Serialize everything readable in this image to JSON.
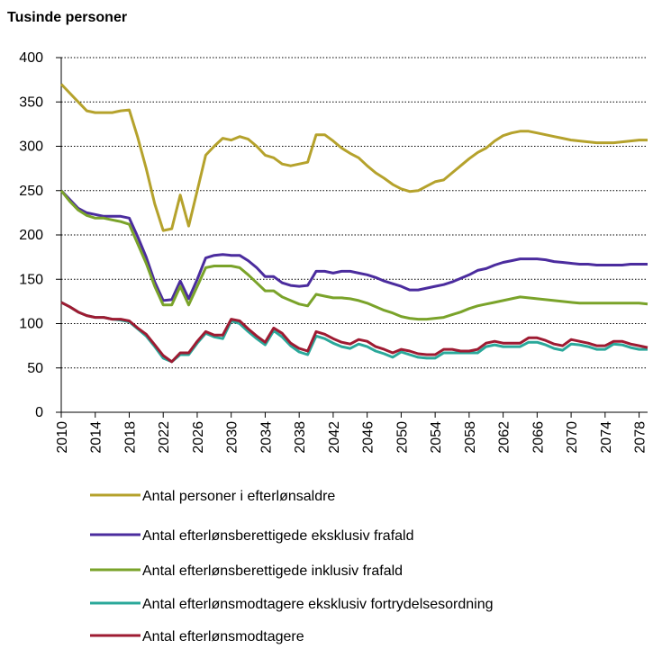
{
  "chart_data": {
    "type": "line",
    "y_label": "Tusinde personer",
    "x": [
      2010,
      2011,
      2012,
      2013,
      2014,
      2015,
      2016,
      2017,
      2018,
      2019,
      2020,
      2021,
      2022,
      2023,
      2024,
      2025,
      2026,
      2027,
      2028,
      2029,
      2030,
      2031,
      2032,
      2033,
      2034,
      2035,
      2036,
      2037,
      2038,
      2039,
      2040,
      2041,
      2042,
      2043,
      2044,
      2045,
      2046,
      2047,
      2048,
      2049,
      2050,
      2051,
      2052,
      2053,
      2054,
      2055,
      2056,
      2057,
      2058,
      2059,
      2060,
      2061,
      2062,
      2063,
      2064,
      2065,
      2066,
      2067,
      2068,
      2069,
      2070,
      2071,
      2072,
      2073,
      2074,
      2075,
      2076,
      2077,
      2078,
      2079
    ],
    "xlim": [
      2010,
      2079
    ],
    "xticks": [
      2010,
      2014,
      2018,
      2022,
      2026,
      2030,
      2034,
      2038,
      2042,
      2046,
      2050,
      2054,
      2058,
      2062,
      2066,
      2070,
      2074,
      2078
    ],
    "ylim": [
      0,
      400
    ],
    "yticks": [
      0,
      50,
      100,
      150,
      200,
      250,
      300,
      350,
      400
    ],
    "grid": true,
    "series": [
      {
        "name": "Antal personer i efterlønsaldre",
        "color": "#b5a22c",
        "values": [
          370,
          360,
          350,
          340,
          338,
          338,
          338,
          340,
          341,
          310,
          275,
          235,
          205,
          207,
          245,
          210,
          250,
          290,
          300,
          309,
          307,
          311,
          308,
          300,
          290,
          287,
          280,
          278,
          280,
          282,
          313,
          313,
          306,
          298,
          292,
          287,
          278,
          270,
          264,
          257,
          252,
          249,
          250,
          255,
          260,
          262,
          270,
          278,
          286,
          293,
          298,
          306,
          312,
          315,
          317,
          317,
          315,
          313,
          311,
          309,
          307,
          306,
          305,
          304,
          304,
          304,
          305,
          306,
          307,
          307
        ]
      },
      {
        "name": "Antal efterlønsberettigede eksklusiv frafald",
        "color": "#4b2c9e",
        "values": [
          250,
          240,
          230,
          225,
          223,
          221,
          221,
          221,
          219,
          198,
          175,
          147,
          126,
          127,
          148,
          128,
          150,
          174,
          177,
          178,
          177,
          177,
          171,
          163,
          153,
          153,
          146,
          143,
          142,
          143,
          159,
          159,
          157,
          159,
          159,
          157,
          155,
          152,
          148,
          145,
          142,
          138,
          138,
          140,
          142,
          144,
          147,
          151,
          155,
          160,
          162,
          166,
          169,
          171,
          173,
          173,
          173,
          172,
          170,
          169,
          168,
          167,
          167,
          166,
          166,
          166,
          166,
          167,
          167,
          167
        ]
      },
      {
        "name": "Antal efterlønsberettigede inklusiv frafald",
        "color": "#7aa32a",
        "values": [
          250,
          238,
          228,
          222,
          219,
          219,
          217,
          215,
          212,
          190,
          168,
          142,
          121,
          121,
          142,
          121,
          142,
          163,
          165,
          165,
          165,
          163,
          155,
          146,
          137,
          137,
          130,
          126,
          122,
          120,
          133,
          131,
          129,
          129,
          128,
          126,
          123,
          119,
          115,
          112,
          108,
          106,
          105,
          105,
          106,
          107,
          110,
          113,
          117,
          120,
          122,
          124,
          126,
          128,
          130,
          129,
          128,
          127,
          126,
          125,
          124,
          123,
          123,
          123,
          123,
          123,
          123,
          123,
          123,
          122
        ]
      },
      {
        "name": "Antal efterlønsmodtagere eksklusiv fortrydelsesordning",
        "color": "#2aa89a",
        "values": [
          124,
          119,
          113,
          109,
          107,
          107,
          105,
          104,
          102,
          94,
          86,
          74,
          61,
          57,
          65,
          65,
          78,
          89,
          85,
          83,
          103,
          100,
          91,
          83,
          76,
          92,
          85,
          75,
          68,
          65,
          86,
          83,
          78,
          74,
          72,
          77,
          74,
          69,
          66,
          62,
          68,
          65,
          62,
          61,
          61,
          67,
          67,
          67,
          67,
          67,
          74,
          76,
          74,
          74,
          74,
          79,
          79,
          76,
          72,
          70,
          77,
          76,
          74,
          71,
          71,
          77,
          76,
          73,
          71,
          71
        ]
      },
      {
        "name": "Antal efterlønsmodtagere",
        "color": "#9e1b32",
        "values": [
          124,
          119,
          113,
          109,
          107,
          107,
          105,
          105,
          103,
          95,
          88,
          76,
          64,
          57,
          67,
          67,
          80,
          91,
          87,
          87,
          105,
          103,
          94,
          86,
          79,
          95,
          89,
          78,
          72,
          69,
          91,
          88,
          83,
          79,
          77,
          82,
          80,
          74,
          71,
          67,
          71,
          69,
          66,
          65,
          65,
          71,
          71,
          69,
          69,
          71,
          78,
          80,
          78,
          78,
          78,
          84,
          84,
          81,
          77,
          75,
          82,
          80,
          78,
          75,
          75,
          80,
          80,
          77,
          75,
          73
        ]
      }
    ]
  }
}
